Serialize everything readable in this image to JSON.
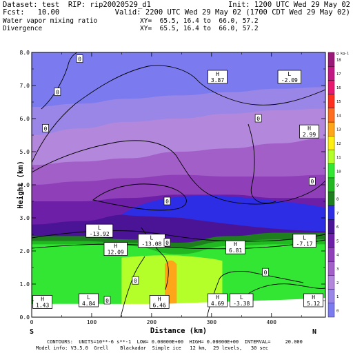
{
  "header": {
    "dataset": "Dataset: test  RIP: rip20020529_d1",
    "init": "Init: 1200 UTC Wed 29 May 02",
    "fcst": "Fcst:   10.00",
    "valid": "Valid: 2200 UTC Wed 29 May 02 (1700 CDT Wed 29 May 02)",
    "field1": "Water vapor mixing ratio",
    "xy1": "XY=  65.5, 16.4 to  66.0, 57.2",
    "field2": "Divergence",
    "xy2": "XY=  65.5, 16.4 to  66.0, 57.2"
  },
  "footer": {
    "contours": "CONTOURS:  UNITS=10**-6 s**-1  LOW= 0.00000E+00  HIGH= 0.00000E+00  INTERVAL=     20.000",
    "model": "Model info: V3.5.0  Grell    Blackadar  Simple ice   12 km,  29 levels,   30 sec"
  },
  "chart_data": {
    "type": "heatmap",
    "xlabel": "Distance (km)",
    "ylabel": "Height (km)",
    "xlim": [
      0,
      490
    ],
    "ylim": [
      0,
      8
    ],
    "x_ticks": [
      0,
      100,
      200,
      300,
      400
    ],
    "y_ticks": [
      0.0,
      1.0,
      2.0,
      3.0,
      4.0,
      5.0,
      6.0,
      7.0,
      8.0
    ],
    "x_endpoint_labels": {
      "left": "S",
      "right": "N"
    },
    "colorbar": {
      "unit": "g kg-1",
      "labels": [
        "0",
        "1",
        "2",
        "3",
        "4",
        "5",
        "6",
        "7",
        "8",
        "9",
        "10",
        "11",
        "12",
        "13",
        "14",
        "15",
        "16",
        "17",
        "18"
      ],
      "colors": [
        "#7b7bef",
        "#9a86e6",
        "#b388dc",
        "#a35fc8",
        "#8f3fb8",
        "#6e1fa8",
        "#4b1496",
        "#2d2de6",
        "#1f7f1f",
        "#22b822",
        "#33e633",
        "#b4ff2a",
        "#ffee11",
        "#ffa51a",
        "#ff6d1f",
        "#ff2f1f",
        "#e6186f",
        "#c21884",
        "#9a1878"
      ]
    },
    "layers": [
      {
        "name": "0",
        "color": "#7b7bef",
        "top_km": 8.0
      },
      {
        "name": "1",
        "color": "#9a86e6",
        "top_km": 6.6
      },
      {
        "name": "2",
        "color": "#b388dc",
        "top_km": 6.0
      },
      {
        "name": "3",
        "color": "#a35fc8",
        "top_km": 5.0
      },
      {
        "name": "4",
        "color": "#8f3fb8",
        "top_km": 4.2
      },
      {
        "name": "5",
        "color": "#6e1fa8",
        "top_km": 3.7
      },
      {
        "name": "6",
        "color": "#4b1496",
        "top_km": 3.1
      },
      {
        "name": "7",
        "color": "#2d2de6",
        "top_km": 3.5
      },
      {
        "name": "8",
        "color": "#1f7f1f",
        "top_km": 2.45
      },
      {
        "name": "9",
        "color": "#22b822",
        "top_km": 2.3
      },
      {
        "name": "10",
        "color": "#33e633",
        "top_km": 2.2
      },
      {
        "name": "11",
        "color": "#b4ff2a",
        "top_km": 1.8
      },
      {
        "name": "13",
        "color": "#ffa51a",
        "top_km": 1.6
      }
    ],
    "extrema": [
      {
        "type": "H",
        "value": "3.87",
        "x": 310,
        "y": 7.25
      },
      {
        "type": "L",
        "value": "-2.09",
        "x": 430,
        "y": 7.25
      },
      {
        "type": "H",
        "value": "2.99",
        "x": 463,
        "y": 5.6
      },
      {
        "type": "L",
        "value": "-13.92",
        "x": 113,
        "y": 2.6
      },
      {
        "type": "L",
        "value": "-13.08",
        "x": 200,
        "y": 2.3
      },
      {
        "type": "H",
        "value": "12.09",
        "x": 140,
        "y": 2.05
      },
      {
        "type": "H",
        "value": "6.81",
        "x": 340,
        "y": 2.1
      },
      {
        "type": "L",
        "value": "-7.17",
        "x": 455,
        "y": 2.3
      },
      {
        "type": "H",
        "value": "1.43",
        "x": 18,
        "y": 0.45
      },
      {
        "type": "L",
        "value": "4.84",
        "x": 95,
        "y": 0.5
      },
      {
        "type": "H",
        "value": "6.46",
        "x": 213,
        "y": 0.45
      },
      {
        "type": "H",
        "value": "4.69",
        "x": 310,
        "y": 0.5
      },
      {
        "type": "L",
        "value": "-3.38",
        "x": 350,
        "y": 0.5
      },
      {
        "type": "H",
        "value": "5.12",
        "x": 470,
        "y": 0.5
      }
    ],
    "zero_labels": [
      {
        "text": "0",
        "x": 80,
        "y": 7.8
      },
      {
        "text": "0",
        "x": 43,
        "y": 6.8
      },
      {
        "text": "0",
        "x": 23,
        "y": 5.7
      },
      {
        "text": "0",
        "x": 378,
        "y": 6.0
      },
      {
        "text": "0",
        "x": 468,
        "y": 4.1
      },
      {
        "text": "0",
        "x": 226,
        "y": 3.5
      },
      {
        "text": "0",
        "x": 226,
        "y": 2.25
      },
      {
        "text": "0",
        "x": 173,
        "y": 1.1
      },
      {
        "text": "0",
        "x": 126,
        "y": 0.5
      },
      {
        "text": "0",
        "x": 390,
        "y": 1.35
      }
    ]
  }
}
